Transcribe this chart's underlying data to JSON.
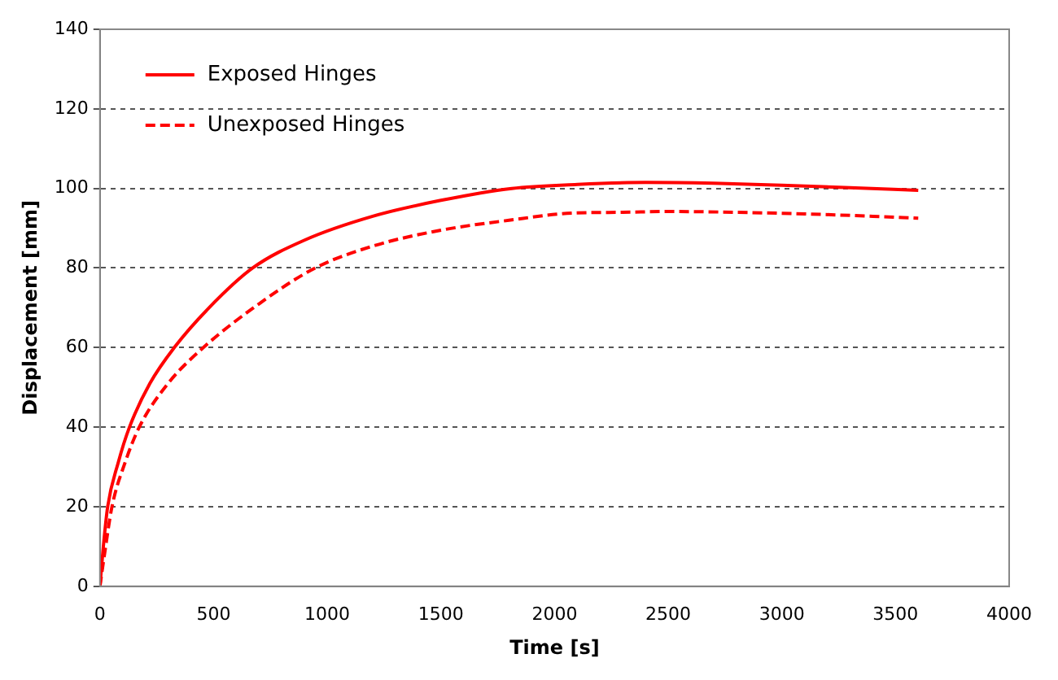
{
  "chart_data": {
    "type": "line",
    "xlabel": "Time [s]",
    "ylabel": "Displacement [mm]",
    "xlim": [
      0,
      4000
    ],
    "xticks": [
      0,
      500,
      1000,
      1500,
      2000,
      2500,
      3000,
      3500,
      4000
    ],
    "ylim": [
      0,
      140
    ],
    "yticks": [
      0,
      20,
      40,
      60,
      80,
      100,
      120,
      140
    ],
    "grid": "y",
    "legend": "top left",
    "marker": "none",
    "series": [
      {
        "name": "Exposed Hinges",
        "color": "#ff0000",
        "line_style": "solid",
        "x": [
          0,
          15,
          34,
          80,
          130,
          220,
          327,
          480,
          672,
          900,
          1200,
          1500,
          1812,
          2100,
          2400,
          2700,
          3000,
          3300,
          3600
        ],
        "values": [
          0,
          10,
          20,
          31,
          40,
          51,
          60,
          70,
          80,
          87,
          93,
          97,
          100,
          101,
          101.5,
          101.3,
          100.8,
          100.2,
          99.5
        ]
      },
      {
        "name": "Unexposed Hinges",
        "color": "#ff0000",
        "line_style": "dashed",
        "x": [
          0,
          20,
          53,
          110,
          173,
          300,
          455,
          700,
          947,
          1200,
          1500,
          1800,
          2080,
          2300,
          2500,
          2800,
          3100,
          3400,
          3600
        ],
        "values": [
          0,
          8,
          20,
          31,
          40,
          51,
          60,
          71,
          80,
          85.5,
          89.5,
          92,
          93.8,
          94,
          94.2,
          94,
          93.6,
          93,
          92.5
        ]
      }
    ]
  }
}
